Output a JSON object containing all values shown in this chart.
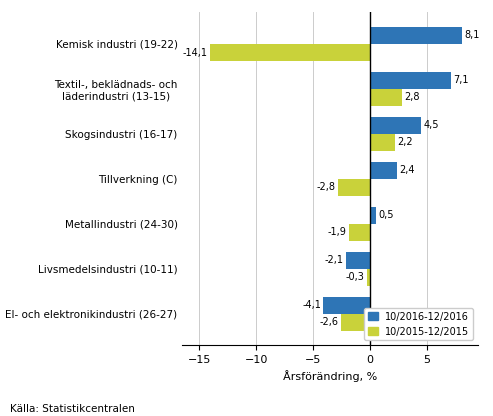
{
  "categories": [
    "El- och elektronikindustri (26-27)",
    "Livsmedelsindustri (10-11)",
    "Metallindustri (24-30)",
    "Tillverkning (C)",
    "Skogsindustri (16-17)",
    "Textil-, beklädnads- och\nläderindustri (13-15)",
    "Kemisk industri (19-22)"
  ],
  "series_2016": [
    -4.1,
    -2.1,
    0.5,
    2.4,
    4.5,
    7.1,
    8.1
  ],
  "series_2015": [
    -2.6,
    -0.3,
    -1.9,
    -2.8,
    2.2,
    2.8,
    -14.1
  ],
  "color_2016": "#2e75b6",
  "color_2015": "#c9d23a",
  "xlabel": "Årsförändring, %",
  "legend_2016": "10/2016-12/2016",
  "legend_2015": "10/2015-12/2015",
  "source": "Källa: Statistikcentralen",
  "xlim": [
    -16.5,
    9.5
  ],
  "xticks": [
    -15,
    -10,
    -5,
    0,
    5
  ],
  "bar_height": 0.38
}
